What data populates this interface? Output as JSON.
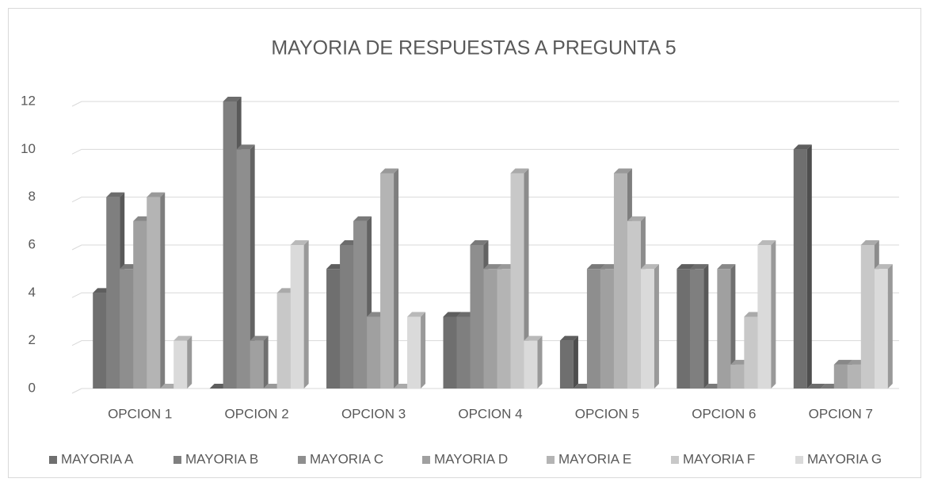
{
  "chart_data": {
    "type": "bar3d",
    "title": "MAYORIA DE RESPUESTAS A PREGUNTA 5",
    "categories": [
      "OPCION 1",
      "OPCION 2",
      "OPCION 3",
      "OPCION 4",
      "OPCION 5",
      "OPCION 6",
      "OPCION 7"
    ],
    "series": [
      {
        "name": "MAYORIA A",
        "color": "#6f6f6f",
        "values": [
          4,
          0,
          5,
          3,
          2,
          5,
          10
        ]
      },
      {
        "name": "MAYORIA B",
        "color": "#7f7f7f",
        "values": [
          8,
          12,
          6,
          3,
          0,
          5,
          0
        ]
      },
      {
        "name": "MAYORIA C",
        "color": "#8e8e8e",
        "values": [
          5,
          10,
          7,
          6,
          5,
          0,
          0
        ]
      },
      {
        "name": "MAYORIA D",
        "color": "#a0a0a0",
        "values": [
          7,
          2,
          3,
          5,
          5,
          5,
          1
        ]
      },
      {
        "name": "MAYORIA E",
        "color": "#b4b4b4",
        "values": [
          8,
          0,
          9,
          5,
          9,
          1,
          1
        ]
      },
      {
        "name": "MAYORIA F",
        "color": "#c8c8c8",
        "values": [
          0,
          4,
          0,
          9,
          7,
          3,
          6
        ]
      },
      {
        "name": "MAYORIA G",
        "color": "#dadada",
        "values": [
          2,
          6,
          3,
          2,
          5,
          6,
          5
        ]
      }
    ],
    "ylim": [
      0,
      12
    ],
    "yticks": [
      0,
      2,
      4,
      6,
      8,
      10,
      12
    ],
    "grid": true,
    "legend": "bottom"
  }
}
